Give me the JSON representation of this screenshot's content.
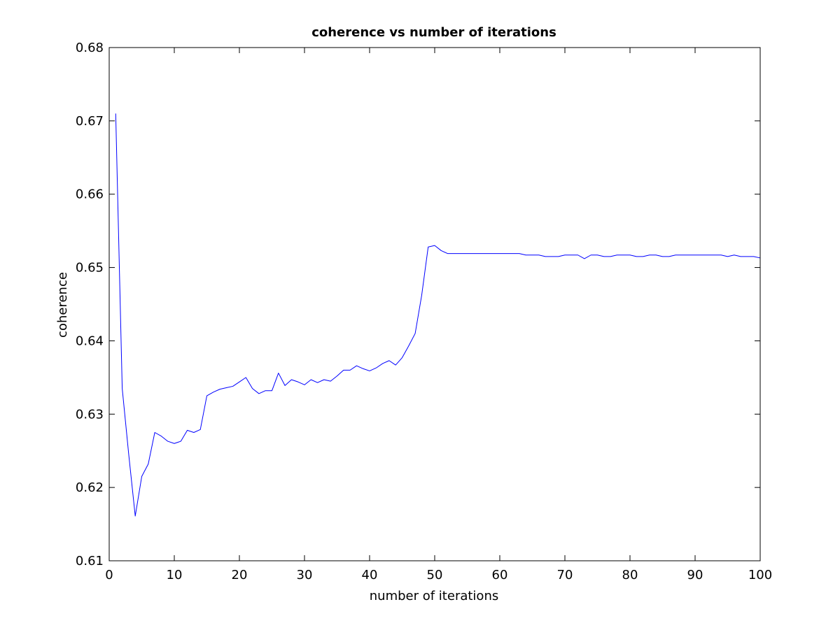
{
  "chart_data": {
    "type": "line",
    "title": "coherence vs number of iterations",
    "xlabel": "number of iterations",
    "ylabel": "coherence",
    "xlim": [
      0,
      100
    ],
    "ylim": [
      0.61,
      0.68
    ],
    "xticks": [
      0,
      10,
      20,
      30,
      40,
      50,
      60,
      70,
      80,
      90,
      100
    ],
    "yticks": [
      0.61,
      0.62,
      0.63,
      0.64,
      0.65,
      0.66,
      0.67,
      0.68
    ],
    "xtick_labels": [
      "0",
      "10",
      "20",
      "30",
      "40",
      "50",
      "60",
      "70",
      "80",
      "90",
      "100"
    ],
    "ytick_labels": [
      "0.61",
      "0.62",
      "0.63",
      "0.64",
      "0.65",
      "0.66",
      "0.67",
      "0.68"
    ],
    "grid": false,
    "box": true,
    "series": [
      {
        "color": "#0000ff",
        "x": [
          1,
          2,
          3,
          4,
          5,
          6,
          7,
          8,
          9,
          10,
          11,
          12,
          13,
          14,
          15,
          16,
          17,
          18,
          19,
          20,
          21,
          22,
          23,
          24,
          25,
          26,
          27,
          28,
          29,
          30,
          31,
          32,
          33,
          34,
          35,
          36,
          37,
          38,
          39,
          40,
          41,
          42,
          43,
          44,
          45,
          46,
          47,
          48,
          49,
          50,
          51,
          52,
          53,
          54,
          55,
          56,
          57,
          58,
          59,
          60,
          61,
          62,
          63,
          64,
          65,
          66,
          67,
          68,
          69,
          70,
          71,
          72,
          73,
          74,
          75,
          76,
          77,
          78,
          79,
          80,
          81,
          82,
          83,
          84,
          85,
          86,
          87,
          88,
          89,
          90,
          91,
          92,
          93,
          94,
          95,
          96,
          97,
          98,
          99,
          100
        ],
        "y": [
          0.671,
          0.6335,
          0.6245,
          0.6161,
          0.6215,
          0.6232,
          0.6275,
          0.627,
          0.6263,
          0.626,
          0.6263,
          0.6278,
          0.6275,
          0.6279,
          0.6325,
          0.633,
          0.6334,
          0.6336,
          0.6338,
          0.6344,
          0.635,
          0.6335,
          0.6328,
          0.6332,
          0.6332,
          0.6356,
          0.6339,
          0.6347,
          0.6344,
          0.634,
          0.6347,
          0.6343,
          0.6347,
          0.6345,
          0.6352,
          0.636,
          0.636,
          0.6366,
          0.6362,
          0.6359,
          0.6363,
          0.6369,
          0.6373,
          0.6367,
          0.6377,
          0.6393,
          0.641,
          0.6462,
          0.6528,
          0.653,
          0.6523,
          0.6519,
          0.6519,
          0.6519,
          0.6519,
          0.6519,
          0.6519,
          0.6519,
          0.6519,
          0.6519,
          0.6519,
          0.6519,
          0.6519,
          0.6517,
          0.6517,
          0.6517,
          0.6515,
          0.6515,
          0.6515,
          0.6517,
          0.6517,
          0.6517,
          0.6512,
          0.6517,
          0.6517,
          0.6515,
          0.6515,
          0.6517,
          0.6517,
          0.6517,
          0.6515,
          0.6515,
          0.6517,
          0.6517,
          0.6515,
          0.6515,
          0.6517,
          0.6517,
          0.6517,
          0.6517,
          0.6517,
          0.6517,
          0.6517,
          0.6517,
          0.6515,
          0.6517,
          0.6515,
          0.6515,
          0.6515,
          0.6513
        ]
      }
    ]
  }
}
